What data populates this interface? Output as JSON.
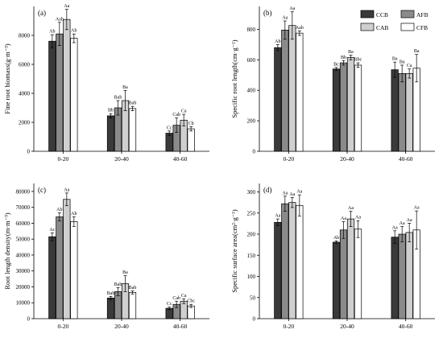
{
  "legend": {
    "position": "top-right of panel (b)",
    "items": [
      {
        "label": "CCB",
        "color": "#3a3a3a"
      },
      {
        "label": "AFB",
        "color": "#8a8a8a"
      },
      {
        "label": "CAB",
        "color": "#cfcfcf"
      },
      {
        "label": "CFB",
        "color": "#ffffff"
      }
    ]
  },
  "chart_data": [
    {
      "type": "bar",
      "panel_label": "(a)",
      "ylabel": "Fine root biomass(g·m⁻³)",
      "categories": [
        "0-20",
        "20-40",
        "40-60"
      ],
      "ylim": [
        0,
        10000
      ],
      "yticks": [
        0,
        2000,
        4000,
        6000,
        8000
      ],
      "series": [
        {
          "name": "CCB",
          "values": [
            7600,
            2450,
            1250
          ],
          "errors": [
            450,
            150,
            150
          ],
          "letters": [
            "Ab",
            "Bb",
            "Cc"
          ]
        },
        {
          "name": "AFB",
          "values": [
            8100,
            3000,
            1800
          ],
          "errors": [
            800,
            500,
            500
          ],
          "letters": [
            "Aab",
            "Bab",
            "Cab"
          ]
        },
        {
          "name": "CAB",
          "values": [
            9100,
            3500,
            2150
          ],
          "errors": [
            700,
            700,
            400
          ],
          "letters": [
            "Aa",
            "Ba",
            "Ca"
          ]
        },
        {
          "name": "CFB",
          "values": [
            7800,
            2950,
            1550
          ],
          "errors": [
            300,
            150,
            150
          ],
          "letters": [
            "Ab",
            "Bab",
            "Cb"
          ]
        }
      ]
    },
    {
      "type": "bar",
      "panel_label": "(b)",
      "ylabel": "Specific root length(cm·g⁻¹)",
      "categories": [
        "0-20",
        "20-40",
        "40-60"
      ],
      "ylim": [
        0,
        950
      ],
      "yticks": [
        0,
        200,
        400,
        600,
        800
      ],
      "series": [
        {
          "name": "CCB",
          "values": [
            680,
            540,
            535
          ],
          "errors": [
            20,
            10,
            50
          ],
          "letters": [
            "Ab",
            "Bc",
            "Ba"
          ]
        },
        {
          "name": "AFB",
          "values": [
            795,
            580,
            510
          ],
          "errors": [
            60,
            15,
            55
          ],
          "letters": [
            "Aa",
            "Bb",
            "Ba"
          ]
        },
        {
          "name": "CAB",
          "values": [
            825,
            615,
            510
          ],
          "errors": [
            90,
            15,
            30
          ],
          "letters": [
            "Aa",
            "Ba",
            "Ca"
          ]
        },
        {
          "name": "CFB",
          "values": [
            775,
            565,
            545
          ],
          "errors": [
            15,
            15,
            90
          ],
          "letters": [
            "Aab",
            "Bbc",
            "Ba"
          ]
        }
      ]
    },
    {
      "type": "bar",
      "panel_label": "(c)",
      "ylabel": "Root length density(m·m⁻³)",
      "categories": [
        "0-20",
        "20-40",
        "40-60"
      ],
      "ylim": [
        0,
        85000
      ],
      "yticks": [
        0,
        10000,
        20000,
        30000,
        40000,
        50000,
        60000,
        70000,
        80000
      ],
      "series": [
        {
          "name": "CCB",
          "values": [
            51500,
            13000,
            6500
          ],
          "errors": [
            2500,
            1000,
            800
          ],
          "letters": [
            "Ac",
            "Bab",
            "Cc"
          ]
        },
        {
          "name": "AFB",
          "values": [
            64000,
            17000,
            9000
          ],
          "errors": [
            2500,
            2500,
            2000
          ],
          "letters": [
            "Ab",
            "Bab",
            "Cab"
          ]
        },
        {
          "name": "CAB",
          "values": [
            75000,
            22000,
            11000
          ],
          "errors": [
            4000,
            5000,
            1500
          ],
          "letters": [
            "Aa",
            "Ba",
            "Ca"
          ]
        },
        {
          "name": "CFB",
          "values": [
            61000,
            16500,
            8000
          ],
          "errors": [
            3000,
            1000,
            1000
          ],
          "letters": [
            "Ab",
            "Bab",
            "Cbc"
          ]
        }
      ]
    },
    {
      "type": "bar",
      "panel_label": "(d)",
      "ylabel": "Specific surface area(cm²·g⁻¹)",
      "categories": [
        "0-20",
        "20-40",
        "40-60"
      ],
      "ylim": [
        0,
        320
      ],
      "yticks": [
        0,
        50,
        100,
        150,
        200,
        250,
        300
      ],
      "series": [
        {
          "name": "CCB",
          "values": [
            228,
            181,
            193
          ],
          "errors": [
            8,
            3,
            15
          ],
          "letters": [
            "Aa",
            "Ab",
            "Aa"
          ]
        },
        {
          "name": "AFB",
          "values": [
            272,
            210,
            200
          ],
          "errors": [
            18,
            20,
            18
          ],
          "letters": [
            "Aa",
            "Aa",
            "Aa"
          ]
        },
        {
          "name": "CAB",
          "values": [
            275,
            236,
            204
          ],
          "errors": [
            12,
            18,
            22
          ],
          "letters": [
            "Aa",
            "Aa",
            "Aa"
          ]
        },
        {
          "name": "CFB",
          "values": [
            268,
            212,
            210
          ],
          "errors": [
            25,
            20,
            45
          ],
          "letters": [
            "Aa",
            "Aa",
            "Aa"
          ]
        }
      ]
    }
  ]
}
